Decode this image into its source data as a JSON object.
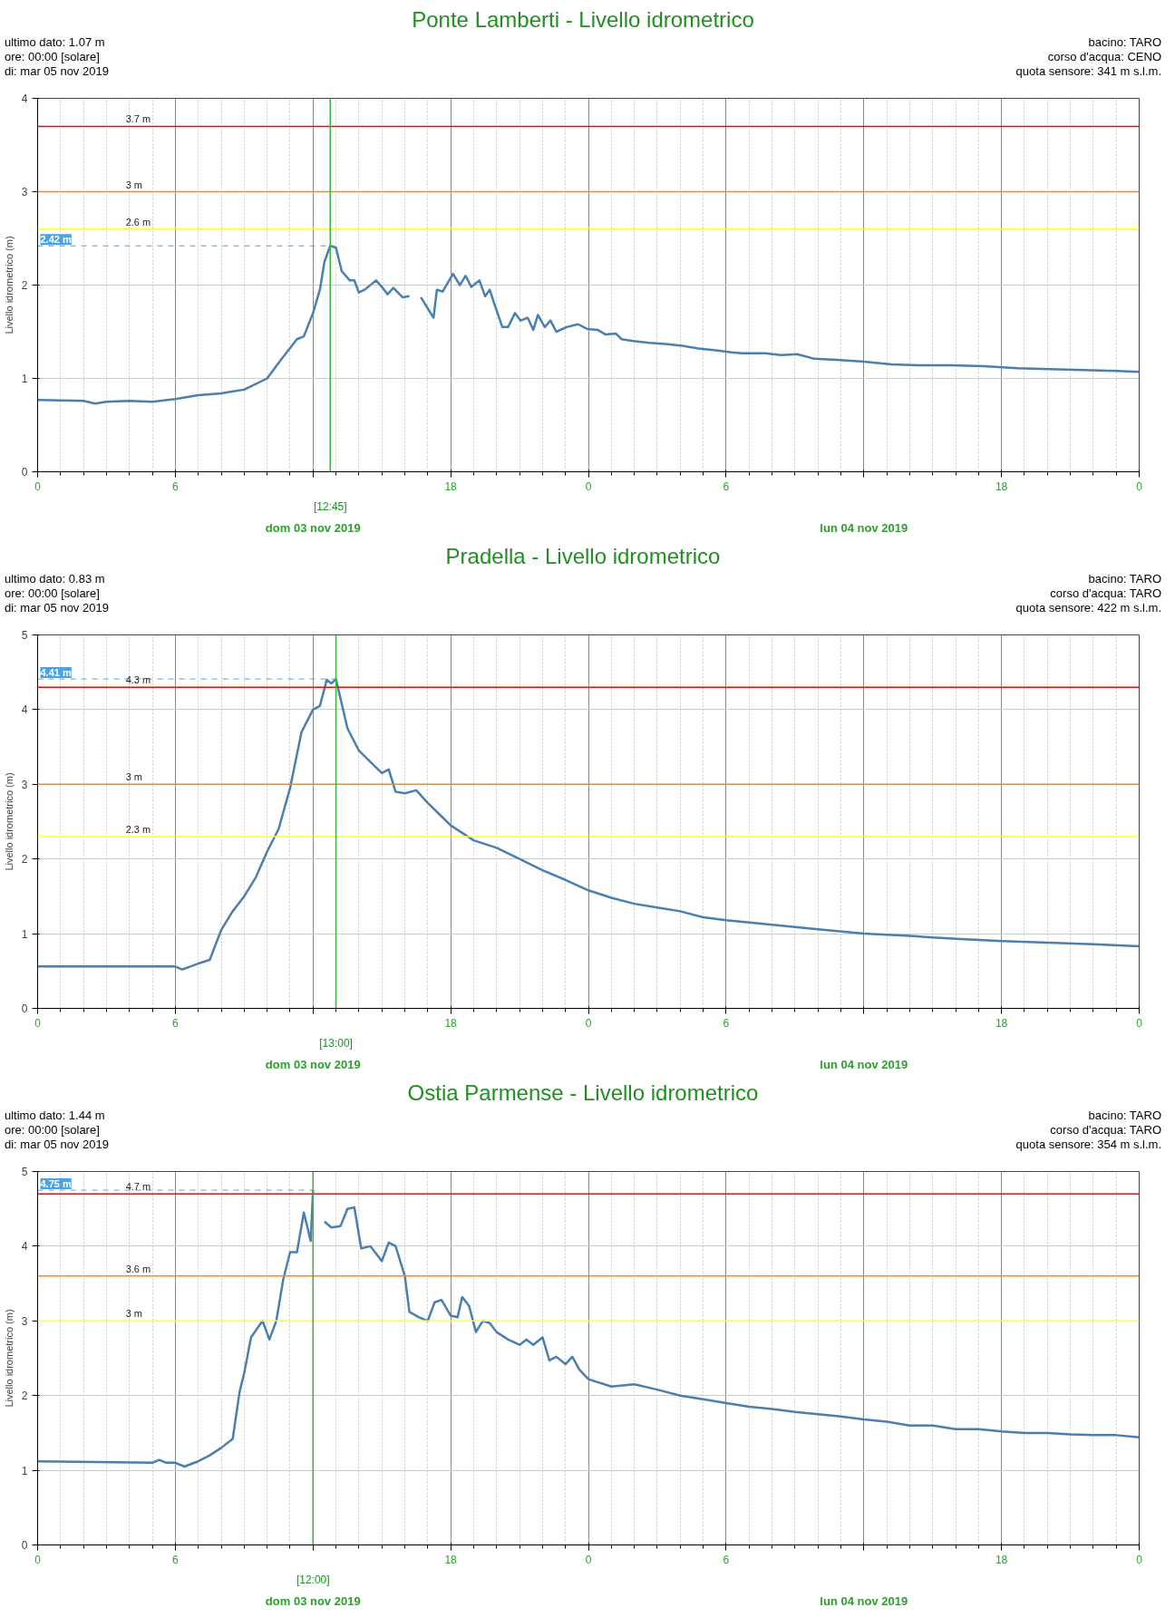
{
  "chart_data": [
    {
      "type": "line",
      "title": "Ponte Lamberti - Livello idrometrico",
      "ylabel": "Livello idrometrico (m)",
      "annotations": [
        "ultimo dato: 1.07 m",
        "ore: 00:00 [solare]",
        "di: mar 05 nov 2019",
        "bacino: TARO",
        "corso d'acqua: CENO",
        "quota sensore: 341 m s.l.m.",
        "dom 03 nov 2019",
        "lun 04 nov 2019"
      ],
      "x": [
        "2019-11-03T00:00",
        "2019-11-03T02:00",
        "2019-11-03T02:30",
        "2019-11-03T03:00",
        "2019-11-03T04:00",
        "2019-11-03T05:00",
        "2019-11-03T06:00",
        "2019-11-03T07:00",
        "2019-11-03T08:00",
        "2019-11-03T09:00",
        "2019-11-03T10:00",
        "2019-11-03T10:36",
        "2019-11-03T11:18",
        "2019-11-03T11:36",
        "2019-11-03T12:00",
        "2019-11-03T12:18",
        "2019-11-03T12:30",
        "2019-11-03T12:45",
        "2019-11-03T13:00",
        "2019-11-03T13:15",
        "2019-11-03T13:36",
        "2019-11-03T13:48",
        "2019-11-03T14:00",
        "2019-11-03T14:15",
        "2019-11-03T14:45",
        "2019-11-03T15:00",
        "2019-11-03T15:15",
        "2019-11-03T15:30",
        "2019-11-03T15:54",
        "2019-11-03T16:12",
        "2019-11-03T16:27",
        "2019-11-03T16:42",
        "2019-11-03T17:00",
        "2019-11-03T17:15",
        "2019-11-03T17:24",
        "2019-11-03T17:39",
        "2019-11-03T18:06",
        "2019-11-03T18:24",
        "2019-11-03T18:39",
        "2019-11-03T18:54",
        "2019-11-03T19:15",
        "2019-11-03T19:30",
        "2019-11-03T19:42",
        "2019-11-03T19:54",
        "2019-11-03T20:15",
        "2019-11-03T20:30",
        "2019-11-03T20:48",
        "2019-11-03T21:03",
        "2019-11-03T21:21",
        "2019-11-03T21:36",
        "2019-11-03T21:48",
        "2019-11-03T22:06",
        "2019-11-03T22:21",
        "2019-11-03T22:36",
        "2019-11-03T23:03",
        "2019-11-03T23:33",
        "2019-11-03T23:57",
        "2019-11-04T00:24",
        "2019-11-04T00:45",
        "2019-11-04T01:12",
        "2019-11-04T01:27",
        "2019-11-04T01:57",
        "2019-11-04T02:39",
        "2019-11-04T03:21",
        "2019-11-04T04:06",
        "2019-11-04T04:48",
        "2019-11-04T05:33",
        "2019-11-04T06:15",
        "2019-11-04T06:42",
        "2019-11-04T07:42",
        "2019-11-04T08:24",
        "2019-11-04T09:06",
        "2019-11-04T09:51",
        "2019-11-04T10:48",
        "2019-11-04T12:00",
        "2019-11-04T13:12",
        "2019-11-04T14:24",
        "2019-11-04T15:48",
        "2019-11-04T17:15",
        "2019-11-04T18:42",
        "2019-11-04T20:06",
        "2019-11-04T21:33",
        "2019-11-04T23:00",
        "2019-11-05T00:00"
      ],
      "series": [
        {
          "color": "#4a7fb0",
          "values": [
            0.77,
            0.76,
            0.73,
            0.75,
            0.76,
            0.75,
            0.78,
            0.82,
            0.84,
            0.88,
            1.0,
            1.2,
            1.42,
            1.45,
            1.7,
            1.95,
            2.25,
            2.42,
            2.4,
            2.15,
            2.05,
            2.05,
            1.92,
            1.95,
            2.05,
            1.98,
            1.9,
            1.97,
            1.87,
            1.88,
            null,
            1.87,
            1.75,
            1.65,
            1.95,
            1.93,
            2.12,
            2.0,
            2.1,
            1.98,
            2.05,
            1.88,
            1.95,
            1.8,
            1.55,
            1.55,
            1.7,
            1.62,
            1.65,
            1.52,
            1.68,
            1.55,
            1.62,
            1.5,
            1.55,
            1.58,
            1.53,
            1.52,
            1.47,
            1.48,
            1.42,
            1.4,
            1.38,
            1.37,
            1.35,
            1.32,
            1.3,
            1.28,
            1.27,
            1.27,
            1.25,
            1.26,
            1.21,
            1.2,
            1.18,
            1.15,
            1.14,
            1.14,
            1.13,
            1.11,
            1.1,
            1.09,
            1.08,
            1.07
          ]
        }
      ],
      "xlim": [
        "2019-11-03T00:00",
        "2019-11-05T00:00"
      ],
      "xticks": [
        {
          "value": "2019-11-03T00:00",
          "label": "0"
        },
        {
          "value": "2019-11-03T06:00",
          "label": "6"
        },
        {
          "value": "2019-11-03T12:00",
          "label": null
        },
        {
          "value": "2019-11-03T18:00",
          "label": "18"
        },
        {
          "value": "2019-11-04T00:00",
          "label": "0"
        },
        {
          "value": "2019-11-04T06:00",
          "label": "6"
        },
        {
          "value": "2019-11-04T12:00",
          "label": null
        },
        {
          "value": "2019-11-04T18:00",
          "label": "18"
        },
        {
          "value": "2019-11-05T00:00",
          "label": "0"
        }
      ],
      "ylim": [
        0,
        4
      ],
      "yticks": [
        0,
        1,
        2,
        3,
        4
      ],
      "grid": true,
      "ref_lines": [
        {
          "axis": "y",
          "value": 3.7,
          "label": "3.7 m",
          "color": "#ff0000"
        },
        {
          "axis": "y",
          "value": 3,
          "label": "3 m",
          "color": "#ff8c00"
        },
        {
          "axis": "y",
          "value": 2.6,
          "label": "2.6 m",
          "color": "#ffff33"
        },
        {
          "axis": "x",
          "value": "2019-11-03T12:45",
          "label": "[12:45]",
          "color": "#3cb43c"
        },
        {
          "axis": "y",
          "value": 2.42,
          "label": "2.42 m",
          "color": "#4aa3e8",
          "line_style": "dashed"
        }
      ]
    },
    {
      "type": "line",
      "title": "Pradella - Livello idrometrico",
      "ylabel": "Livello idrometrico (m)",
      "annotations": [
        "ultimo dato: 0.83 m",
        "ore: 00:00 [solare]",
        "di: mar 05 nov 2019",
        "bacino: TARO",
        "corso d'acqua: TARO",
        "quota sensore: 422 m s.l.m.",
        "dom 03 nov 2019",
        "lun 04 nov 2019"
      ],
      "x": [
        "2019-11-03T00:00",
        "2019-11-03T06:00",
        "2019-11-03T06:18",
        "2019-11-03T07:00",
        "2019-11-03T07:30",
        "2019-11-03T08:00",
        "2019-11-03T08:30",
        "2019-11-03T09:00",
        "2019-11-03T09:30",
        "2019-11-03T10:00",
        "2019-11-03T10:30",
        "2019-11-03T11:00",
        "2019-11-03T11:30",
        "2019-11-03T12:00",
        "2019-11-03T12:18",
        "2019-11-03T12:36",
        "2019-11-03T12:48",
        "2019-11-03T13:00",
        "2019-11-03T13:30",
        "2019-11-03T14:00",
        "2019-11-03T14:30",
        "2019-11-03T15:00",
        "2019-11-03T15:18",
        "2019-11-03T15:36",
        "2019-11-03T16:00",
        "2019-11-03T16:30",
        "2019-11-03T17:00",
        "2019-11-03T17:30",
        "2019-11-03T18:00",
        "2019-11-03T18:30",
        "2019-11-03T19:00",
        "2019-11-03T20:00",
        "2019-11-03T21:00",
        "2019-11-03T22:00",
        "2019-11-03T23:00",
        "2019-11-04T00:00",
        "2019-11-04T01:00",
        "2019-11-04T02:00",
        "2019-11-04T03:00",
        "2019-11-04T04:00",
        "2019-11-04T05:00",
        "2019-11-04T06:00",
        "2019-11-04T08:00",
        "2019-11-04T10:00",
        "2019-11-04T12:00",
        "2019-11-04T14:00",
        "2019-11-04T16:00",
        "2019-11-04T18:00",
        "2019-11-04T20:00",
        "2019-11-04T22:00",
        "2019-11-05T00:00"
      ],
      "series": [
        {
          "color": "#4a7fb0",
          "values": [
            0.56,
            0.56,
            0.52,
            0.6,
            0.65,
            1.05,
            1.3,
            1.5,
            1.75,
            2.1,
            2.4,
            2.95,
            3.7,
            4.0,
            4.05,
            4.4,
            4.35,
            4.41,
            3.75,
            3.45,
            3.3,
            3.15,
            3.2,
            2.9,
            2.88,
            2.92,
            2.75,
            2.6,
            2.45,
            2.35,
            2.25,
            2.15,
            2.0,
            1.85,
            1.72,
            1.58,
            1.48,
            1.4,
            1.35,
            1.3,
            1.22,
            1.18,
            1.12,
            1.06,
            1.0,
            0.97,
            0.93,
            0.9,
            0.88,
            0.86,
            0.83
          ]
        }
      ],
      "xlim": [
        "2019-11-03T00:00",
        "2019-11-05T00:00"
      ],
      "xticks": [
        {
          "value": "2019-11-03T00:00",
          "label": "0"
        },
        {
          "value": "2019-11-03T06:00",
          "label": "6"
        },
        {
          "value": "2019-11-03T12:00",
          "label": null
        },
        {
          "value": "2019-11-03T18:00",
          "label": "18"
        },
        {
          "value": "2019-11-04T00:00",
          "label": "0"
        },
        {
          "value": "2019-11-04T06:00",
          "label": "6"
        },
        {
          "value": "2019-11-04T12:00",
          "label": null
        },
        {
          "value": "2019-11-04T18:00",
          "label": "18"
        },
        {
          "value": "2019-11-05T00:00",
          "label": "0"
        }
      ],
      "ylim": [
        0,
        5
      ],
      "yticks": [
        0,
        1,
        2,
        3,
        4,
        5
      ],
      "grid": true,
      "ref_lines": [
        {
          "axis": "y",
          "value": 4.3,
          "label": "4.3 m",
          "color": "#ff0000"
        },
        {
          "axis": "y",
          "value": 3,
          "label": "3 m",
          "color": "#ff8c00"
        },
        {
          "axis": "y",
          "value": 2.3,
          "label": "2.3 m",
          "color": "#ffff33"
        },
        {
          "axis": "x",
          "value": "2019-11-03T13:00",
          "label": "[13:00]",
          "color": "#3cb43c"
        },
        {
          "axis": "y",
          "value": 4.41,
          "label": "4.41 m",
          "color": "#4aa3e8",
          "line_style": "dashed"
        }
      ]
    },
    {
      "type": "line",
      "title": "Ostia Parmense - Livello idrometrico",
      "ylabel": "Livello idrometrico (m)",
      "annotations": [
        "ultimo dato: 1.44 m",
        "ore: 00:00 [solare]",
        "di: mar 05 nov 2019",
        "bacino: TARO",
        "corso d'acqua: TARO",
        "quota sensore: 354 m s.l.m.",
        "dom 03 nov 2019",
        "lun 04 nov 2019"
      ],
      "x": [
        "2019-11-03T00:00",
        "2019-11-03T05:00",
        "2019-11-03T05:18",
        "2019-11-03T05:36",
        "2019-11-03T06:00",
        "2019-11-03T06:24",
        "2019-11-03T07:00",
        "2019-11-03T07:30",
        "2019-11-03T08:00",
        "2019-11-03T08:30",
        "2019-11-03T08:48",
        "2019-11-03T09:00",
        "2019-11-03T09:18",
        "2019-11-03T09:48",
        "2019-11-03T10:06",
        "2019-11-03T10:24",
        "2019-11-03T10:42",
        "2019-11-03T11:00",
        "2019-11-03T11:18",
        "2019-11-03T11:36",
        "2019-11-03T11:54",
        "2019-11-03T12:00",
        "2019-11-03T12:15",
        "2019-11-03T12:30",
        "2019-11-03T12:48",
        "2019-11-03T13:12",
        "2019-11-03T13:30",
        "2019-11-03T13:48",
        "2019-11-03T14:06",
        "2019-11-03T14:30",
        "2019-11-03T14:48",
        "2019-11-03T15:00",
        "2019-11-03T15:18",
        "2019-11-03T15:36",
        "2019-11-03T16:00",
        "2019-11-03T16:12",
        "2019-11-03T16:36",
        "2019-11-03T17:00",
        "2019-11-03T17:18",
        "2019-11-03T17:36",
        "2019-11-03T18:00",
        "2019-11-03T18:18",
        "2019-11-03T18:30",
        "2019-11-03T18:48",
        "2019-11-03T19:06",
        "2019-11-03T19:24",
        "2019-11-03T19:42",
        "2019-11-03T20:00",
        "2019-11-03T20:30",
        "2019-11-03T21:00",
        "2019-11-03T21:18",
        "2019-11-03T21:36",
        "2019-11-03T22:00",
        "2019-11-03T22:18",
        "2019-11-03T22:36",
        "2019-11-03T23:00",
        "2019-11-03T23:18",
        "2019-11-03T23:36",
        "2019-11-04T00:00",
        "2019-11-04T01:00",
        "2019-11-04T02:00",
        "2019-11-04T03:00",
        "2019-11-04T04:00",
        "2019-11-04T05:00",
        "2019-11-04T06:00",
        "2019-11-04T07:00",
        "2019-11-04T08:00",
        "2019-11-04T09:00",
        "2019-11-04T10:00",
        "2019-11-04T11:00",
        "2019-11-04T12:00",
        "2019-11-04T13:00",
        "2019-11-04T14:00",
        "2019-11-04T15:00",
        "2019-11-04T16:00",
        "2019-11-04T17:00",
        "2019-11-04T18:00",
        "2019-11-04T19:00",
        "2019-11-04T20:00",
        "2019-11-04T21:00",
        "2019-11-04T22:00",
        "2019-11-04T23:00",
        "2019-11-05T00:00"
      ],
      "series": [
        {
          "color": "#4a7fb0",
          "values": [
            1.12,
            1.1,
            1.14,
            1.1,
            1.1,
            1.05,
            1.12,
            1.2,
            1.3,
            1.42,
            2.05,
            2.3,
            2.78,
            3.0,
            2.75,
            3.0,
            3.55,
            3.92,
            3.92,
            4.45,
            4.07,
            4.75,
            null,
            4.33,
            4.25,
            4.27,
            4.5,
            4.52,
            3.97,
            4.0,
            3.88,
            3.8,
            4.05,
            4.0,
            3.6,
            3.12,
            3.05,
            3.0,
            3.25,
            3.28,
            3.07,
            3.05,
            3.32,
            3.2,
            2.85,
            3.0,
            2.97,
            2.85,
            2.75,
            2.68,
            2.75,
            2.68,
            2.78,
            2.47,
            2.52,
            2.42,
            2.52,
            2.35,
            2.22,
            2.12,
            2.15,
            2.08,
            2.0,
            1.95,
            1.9,
            1.85,
            1.82,
            1.78,
            1.75,
            1.72,
            1.68,
            1.65,
            1.6,
            1.6,
            1.55,
            1.55,
            1.52,
            1.5,
            1.5,
            1.48,
            1.47,
            1.47,
            1.44
          ]
        }
      ],
      "xlim": [
        "2019-11-03T00:00",
        "2019-11-05T00:00"
      ],
      "xticks": [
        {
          "value": "2019-11-03T00:00",
          "label": "0"
        },
        {
          "value": "2019-11-03T06:00",
          "label": "6"
        },
        {
          "value": "2019-11-03T12:00",
          "label": null
        },
        {
          "value": "2019-11-03T18:00",
          "label": "18"
        },
        {
          "value": "2019-11-04T00:00",
          "label": "0"
        },
        {
          "value": "2019-11-04T06:00",
          "label": "6"
        },
        {
          "value": "2019-11-04T12:00",
          "label": null
        },
        {
          "value": "2019-11-04T18:00",
          "label": "18"
        },
        {
          "value": "2019-11-05T00:00",
          "label": "0"
        }
      ],
      "ylim": [
        0,
        5
      ],
      "yticks": [
        0,
        1,
        2,
        3,
        4,
        5
      ],
      "grid": true,
      "ref_lines": [
        {
          "axis": "y",
          "value": 4.7,
          "label": "4.7 m",
          "color": "#ff0000"
        },
        {
          "axis": "y",
          "value": 3.6,
          "label": "3.6 m",
          "color": "#ff8c00"
        },
        {
          "axis": "y",
          "value": 3,
          "label": "3 m",
          "color": "#ffff33"
        },
        {
          "axis": "x",
          "value": "2019-11-03T12:00",
          "label": "[12:00]",
          "color": "#3cb43c"
        },
        {
          "axis": "y",
          "value": 4.75,
          "label": "4.75 m",
          "color": "#4aa3e8",
          "line_style": "dashed"
        }
      ]
    }
  ]
}
